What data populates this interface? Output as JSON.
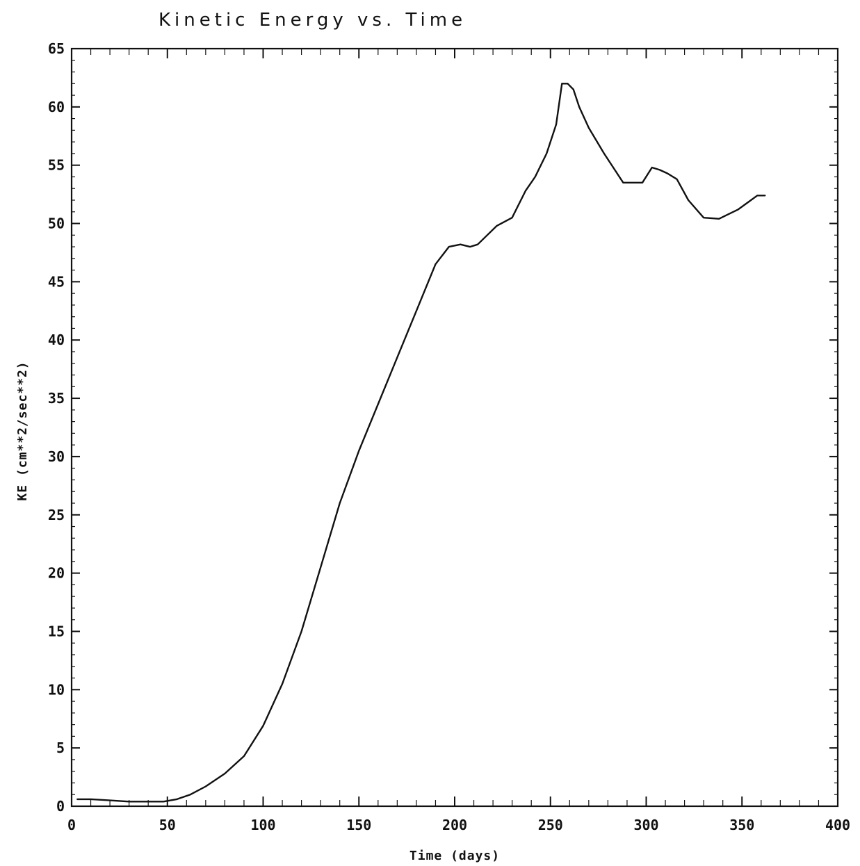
{
  "chart_data": {
    "type": "line",
    "title": "Kinetic Energy vs. Time",
    "xlabel": "Time (days)",
    "ylabel": "KE (cm**2/sec**2)",
    "xlim": [
      0,
      400
    ],
    "ylim": [
      0,
      65
    ],
    "x_ticks": [
      0,
      50,
      100,
      150,
      200,
      250,
      300,
      350,
      400
    ],
    "x_tick_labels": [
      "0",
      "50",
      "100",
      "150",
      "200",
      "250",
      "300",
      "350",
      "400"
    ],
    "y_ticks": [
      0,
      5,
      10,
      15,
      20,
      25,
      30,
      35,
      40,
      45,
      50,
      55,
      60,
      65
    ],
    "y_tick_labels": [
      "0",
      "5",
      "10",
      "15",
      "20",
      "25",
      "30",
      "35",
      "40",
      "45",
      "50",
      "55",
      "60",
      "65"
    ],
    "grid": false,
    "series": [
      {
        "x": [
          3,
          10,
          20,
          30,
          40,
          48,
          55,
          62,
          70,
          80,
          90,
          100,
          110,
          120,
          130,
          140,
          150,
          160,
          170,
          180,
          190,
          197,
          203,
          208,
          212,
          217,
          222,
          230,
          237,
          242,
          248,
          253,
          256,
          259,
          262,
          265,
          270,
          278,
          288,
          298,
          303,
          307,
          311,
          316,
          322,
          330,
          338,
          343,
          348,
          353,
          358,
          362
        ],
        "y": [
          0.6,
          0.6,
          0.5,
          0.4,
          0.4,
          0.4,
          0.6,
          1.0,
          1.7,
          2.8,
          4.3,
          6.9,
          10.5,
          15.0,
          20.5,
          26.0,
          30.5,
          34.5,
          38.5,
          42.5,
          46.5,
          48.0,
          48.2,
          48.0,
          48.2,
          49.0,
          49.8,
          50.5,
          52.8,
          54.0,
          56.0,
          58.5,
          62.0,
          62.0,
          61.5,
          60.0,
          58.2,
          56.0,
          53.5,
          53.5,
          54.8,
          54.6,
          54.3,
          53.8,
          52.0,
          50.5,
          50.4,
          50.8,
          51.2,
          51.8,
          52.4,
          52.4
        ]
      }
    ]
  }
}
